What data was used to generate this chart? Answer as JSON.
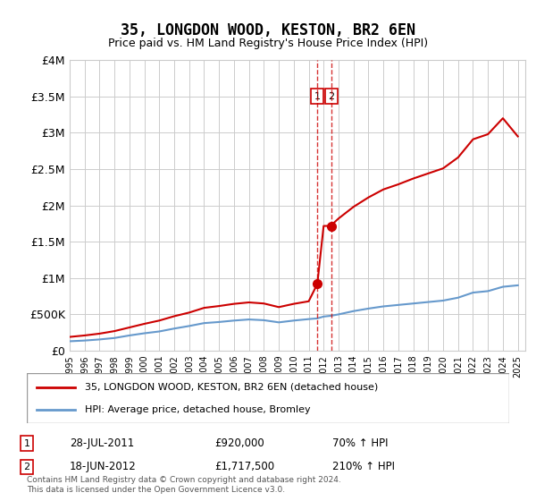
{
  "title": "35, LONGDON WOOD, KESTON, BR2 6EN",
  "subtitle": "Price paid vs. HM Land Registry's House Price Index (HPI)",
  "legend_property": "35, LONGDON WOOD, KESTON, BR2 6EN (detached house)",
  "legend_hpi": "HPI: Average price, detached house, Bromley",
  "sale1_date": "2011-07-28",
  "sale1_label": "28-JUL-2011",
  "sale1_price": 920000,
  "sale1_pct": "70% ↑ HPI",
  "sale2_date": "2012-06-18",
  "sale2_label": "18-JUN-2012",
  "sale2_price": 1717500,
  "sale2_pct": "210% ↑ HPI",
  "footnote": "Contains HM Land Registry data © Crown copyright and database right 2024.\nThis data is licensed under the Open Government Licence v3.0.",
  "xlim_start": 1995.0,
  "xlim_end": 2025.5,
  "ylim_min": 0,
  "ylim_max": 4000000,
  "property_color": "#cc0000",
  "hpi_color": "#6699cc",
  "grid_color": "#cccccc",
  "background_color": "#ffffff",
  "hpi_years": [
    1995,
    1996,
    1997,
    1998,
    1999,
    2000,
    2001,
    2002,
    2003,
    2004,
    2005,
    2006,
    2007,
    2008,
    2009,
    2010,
    2011,
    2011.58,
    2012,
    2012.46,
    2013,
    2014,
    2015,
    2016,
    2017,
    2018,
    2019,
    2020,
    2021,
    2022,
    2023,
    2024,
    2025
  ],
  "hpi_values": [
    130000,
    140000,
    155000,
    175000,
    210000,
    240000,
    265000,
    305000,
    340000,
    380000,
    395000,
    415000,
    430000,
    420000,
    390000,
    415000,
    435000,
    445000,
    470000,
    480000,
    500000,
    545000,
    580000,
    610000,
    630000,
    650000,
    670000,
    690000,
    730000,
    800000,
    820000,
    880000,
    900000
  ],
  "prop_years": [
    1995,
    1996,
    1997,
    1998,
    1999,
    2000,
    2001,
    2002,
    2003,
    2004,
    2005,
    2006,
    2007,
    2008,
    2009,
    2010,
    2011,
    2011.58,
    2012,
    2012.46,
    2013,
    2014,
    2015,
    2016,
    2017,
    2018,
    2019,
    2020,
    2021,
    2022,
    2023,
    2024,
    2025
  ],
  "prop_values": [
    190000,
    210000,
    235000,
    270000,
    320000,
    370000,
    415000,
    475000,
    525000,
    590000,
    615000,
    645000,
    665000,
    650000,
    600000,
    645000,
    680000,
    920000,
    1717500,
    1717500,
    1820000,
    1980000,
    2110000,
    2220000,
    2290000,
    2370000,
    2440000,
    2510000,
    2660000,
    2910000,
    2980000,
    3200000,
    2950000
  ]
}
